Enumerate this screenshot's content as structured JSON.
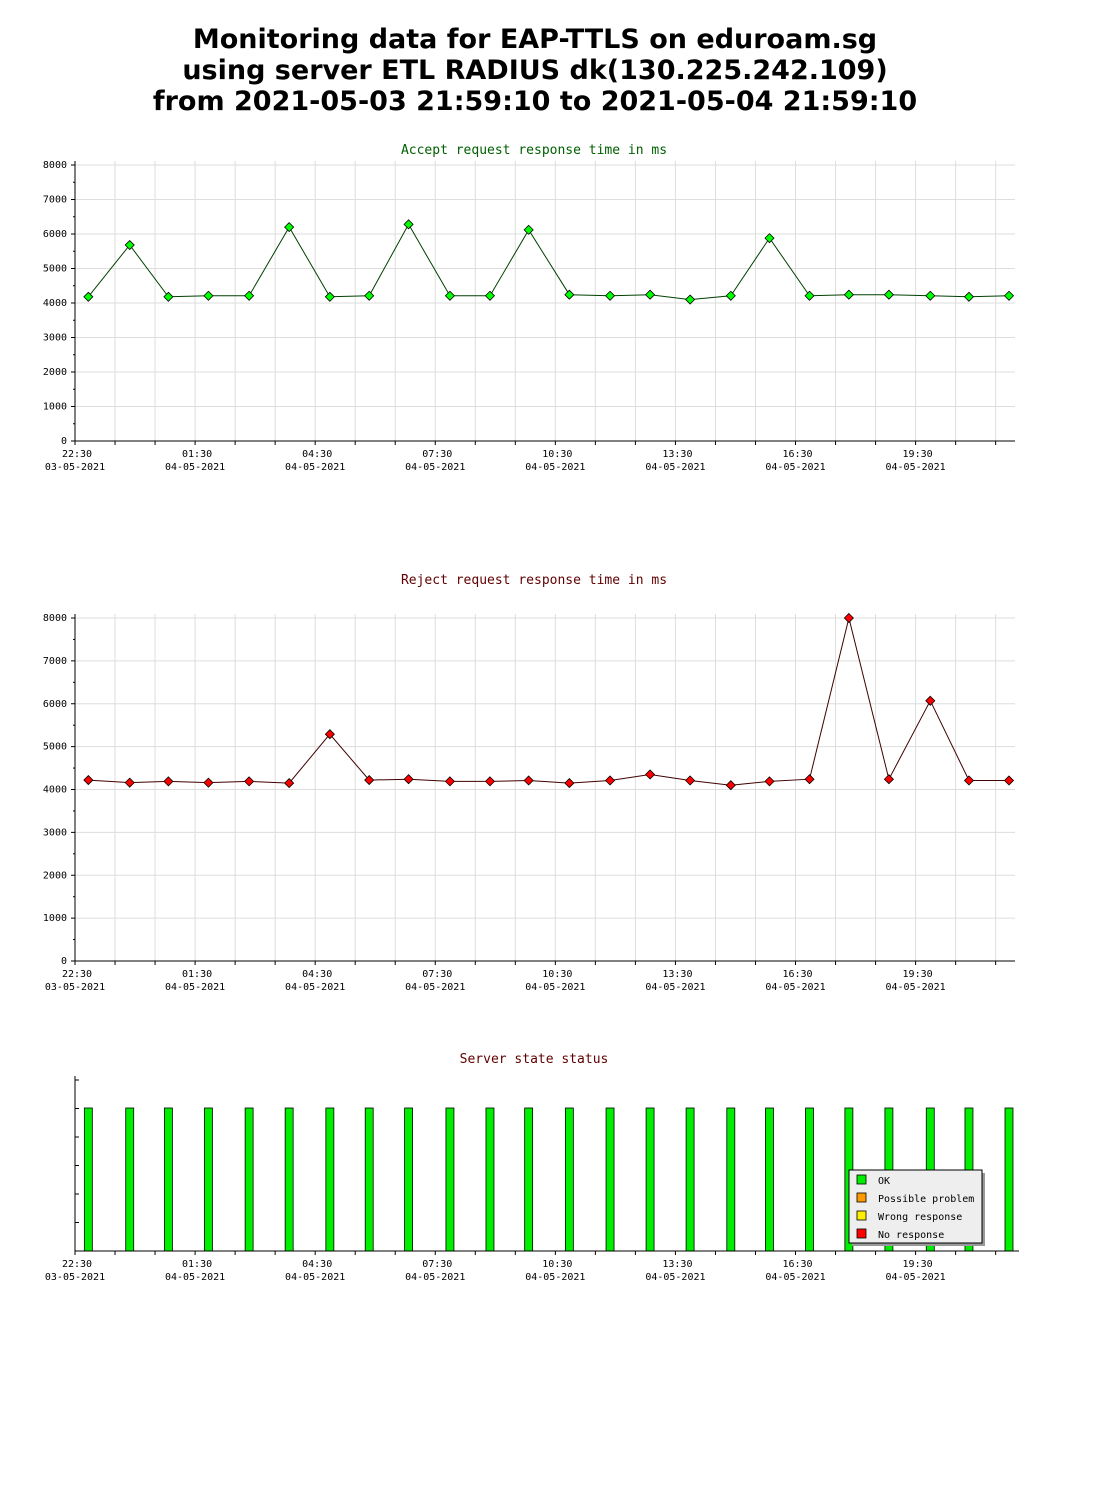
{
  "page_title": {
    "line1": "Monitoring data for EAP-TTLS on eduroam.sg",
    "line2": "using server ETL RADIUS dk(130.225.242.109)",
    "line3": "from 2021-05-03 21:59:10 to 2021-05-04 21:59:10"
  },
  "colors": {
    "accept_line": "#004000",
    "accept_marker": "#00ff00",
    "accept_title": "#006000",
    "reject_line": "#400000",
    "reject_marker": "#ff0000",
    "reject_title": "#600000",
    "status_bar": "#00ee00",
    "grid": "#dddddd"
  },
  "chart_data": [
    {
      "type": "line",
      "title": "Accept request response time in ms",
      "ylim": [
        0,
        8000
      ],
      "yticks": [
        "0",
        "1000",
        "2000",
        "3000",
        "4000",
        "5000",
        "6000",
        "7000",
        "8000"
      ],
      "xlim": [
        "2021-05-03 22:30",
        "2021-05-04 21:59"
      ],
      "xtick_labels": [
        {
          "time": "22:30",
          "date": "03-05-2021"
        },
        {
          "time": "01:30",
          "date": "04-05-2021"
        },
        {
          "time": "04:30",
          "date": "04-05-2021"
        },
        {
          "time": "07:30",
          "date": "04-05-2021"
        },
        {
          "time": "10:30",
          "date": "04-05-2021"
        },
        {
          "time": "13:30",
          "date": "04-05-2021"
        },
        {
          "time": "16:30",
          "date": "04-05-2021"
        },
        {
          "time": "19:30",
          "date": "04-05-2021"
        }
      ],
      "grid": true,
      "x": [
        "2021-05-03 22:50",
        "2021-05-03 23:52",
        "2021-05-04 00:50",
        "2021-05-04 01:50",
        "2021-05-04 02:51",
        "2021-05-04 03:51",
        "2021-05-04 04:52",
        "2021-05-04 05:51",
        "2021-05-04 06:50",
        "2021-05-04 07:52",
        "2021-05-04 08:52",
        "2021-05-04 09:50",
        "2021-05-04 10:51",
        "2021-05-04 11:52",
        "2021-05-04 12:52",
        "2021-05-04 13:52",
        "2021-05-04 14:53",
        "2021-05-04 15:51",
        "2021-05-04 16:51",
        "2021-05-04 17:50",
        "2021-05-04 18:50",
        "2021-05-04 19:52",
        "2021-05-04 20:50",
        "2021-05-04 21:50"
      ],
      "values": [
        4180,
        5680,
        4180,
        4210,
        4210,
        6200,
        4180,
        4210,
        6280,
        4210,
        4210,
        6120,
        4240,
        4210,
        4240,
        4100,
        4210,
        5880,
        4210,
        4240,
        4240,
        4210,
        4180,
        4210
      ]
    },
    {
      "type": "line",
      "title": "Reject request response time in ms",
      "ylim": [
        0,
        8000
      ],
      "yticks": [
        "0",
        "1000",
        "2000",
        "3000",
        "4000",
        "5000",
        "6000",
        "7000",
        "8000"
      ],
      "xlim": [
        "2021-05-03 22:30",
        "2021-05-04 21:59"
      ],
      "xtick_labels": [
        {
          "time": "22:30",
          "date": "03-05-2021"
        },
        {
          "time": "01:30",
          "date": "04-05-2021"
        },
        {
          "time": "04:30",
          "date": "04-05-2021"
        },
        {
          "time": "07:30",
          "date": "04-05-2021"
        },
        {
          "time": "10:30",
          "date": "04-05-2021"
        },
        {
          "time": "13:30",
          "date": "04-05-2021"
        },
        {
          "time": "16:30",
          "date": "04-05-2021"
        },
        {
          "time": "19:30",
          "date": "04-05-2021"
        }
      ],
      "grid": true,
      "x": [
        "2021-05-03 22:50",
        "2021-05-03 23:52",
        "2021-05-04 00:50",
        "2021-05-04 01:50",
        "2021-05-04 02:51",
        "2021-05-04 03:51",
        "2021-05-04 04:52",
        "2021-05-04 05:51",
        "2021-05-04 06:50",
        "2021-05-04 07:52",
        "2021-05-04 08:52",
        "2021-05-04 09:50",
        "2021-05-04 10:51",
        "2021-05-04 11:52",
        "2021-05-04 12:52",
        "2021-05-04 13:52",
        "2021-05-04 14:53",
        "2021-05-04 15:51",
        "2021-05-04 16:51",
        "2021-05-04 17:50",
        "2021-05-04 18:50",
        "2021-05-04 19:52",
        "2021-05-04 20:50",
        "2021-05-04 21:50"
      ],
      "values": [
        4220,
        4160,
        4190,
        4160,
        4190,
        4150,
        5290,
        4220,
        4240,
        4190,
        4190,
        4210,
        4150,
        4210,
        4350,
        4210,
        4100,
        4190,
        4240,
        8000,
        4240,
        6070,
        4210,
        4210
      ]
    },
    {
      "type": "bar",
      "title": "Server state status",
      "xlim": [
        "2021-05-03 22:30",
        "2021-05-04 21:59"
      ],
      "xtick_labels": [
        {
          "time": "22:30",
          "date": "03-05-2021"
        },
        {
          "time": "01:30",
          "date": "04-05-2021"
        },
        {
          "time": "04:30",
          "date": "04-05-2021"
        },
        {
          "time": "07:30",
          "date": "04-05-2021"
        },
        {
          "time": "10:30",
          "date": "04-05-2021"
        },
        {
          "time": "13:30",
          "date": "04-05-2021"
        },
        {
          "time": "16:30",
          "date": "04-05-2021"
        },
        {
          "time": "19:30",
          "date": "04-05-2021"
        }
      ],
      "grid": false,
      "x": [
        "2021-05-03 22:50",
        "2021-05-03 23:52",
        "2021-05-04 00:50",
        "2021-05-04 01:50",
        "2021-05-04 02:51",
        "2021-05-04 03:51",
        "2021-05-04 04:52",
        "2021-05-04 05:51",
        "2021-05-04 06:50",
        "2021-05-04 07:52",
        "2021-05-04 08:52",
        "2021-05-04 09:50",
        "2021-05-04 10:51",
        "2021-05-04 11:52",
        "2021-05-04 12:52",
        "2021-05-04 13:52",
        "2021-05-04 14:53",
        "2021-05-04 15:51",
        "2021-05-04 16:51",
        "2021-05-04 17:50",
        "2021-05-04 18:50",
        "2021-05-04 19:52",
        "2021-05-04 20:50",
        "2021-05-04 21:50"
      ],
      "states": [
        "OK",
        "OK",
        "OK",
        "OK",
        "OK",
        "OK",
        "OK",
        "OK",
        "OK",
        "OK",
        "OK",
        "OK",
        "OK",
        "OK",
        "OK",
        "OK",
        "OK",
        "OK",
        "OK",
        "OK",
        "OK",
        "OK",
        "OK",
        "OK"
      ],
      "legend_position": "bottom-right",
      "legend": [
        {
          "label": "OK",
          "color": "#00ee00"
        },
        {
          "label": "Possible problem",
          "color": "#ff9900"
        },
        {
          "label": "Wrong response",
          "color": "#ffee00"
        },
        {
          "label": "No response",
          "color": "#ff0000"
        }
      ]
    }
  ]
}
